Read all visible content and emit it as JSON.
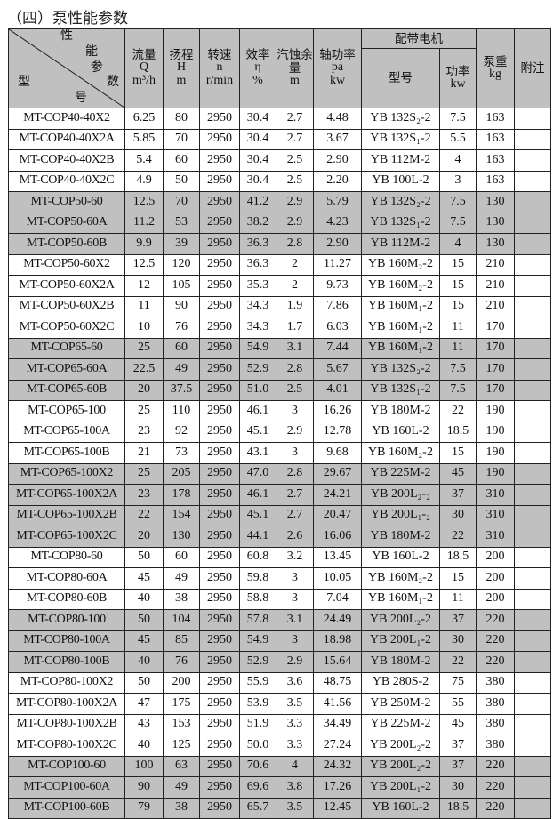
{
  "title": "（四）泵性能参数",
  "header": {
    "diag_top": [
      "性",
      "能",
      "参",
      "数"
    ],
    "diag_bottom": [
      "型",
      "号"
    ],
    "flow": {
      "label": "流量",
      "sym": "Q",
      "unit": "m³/h"
    },
    "head": {
      "label": "扬程",
      "sym": "H",
      "unit": "m"
    },
    "speed": {
      "label": "转速",
      "sym": "n",
      "unit": "r/min"
    },
    "eff": {
      "label": "效率",
      "sym": "η",
      "unit": "%"
    },
    "npsh": {
      "label": "汽蚀余量",
      "unit": "m"
    },
    "shaft": {
      "label": "轴功率",
      "sym": "pa",
      "unit": "kw"
    },
    "motor": {
      "label": "配带电机",
      "model": "型号",
      "power": "功率",
      "power_unit": "kw"
    },
    "weight": {
      "label": "泵重",
      "unit": "kg"
    },
    "note": "附注"
  },
  "shade_color": "#c0c0c0",
  "rows": [
    {
      "model": "MT-COP40-40X2",
      "q": "6.25",
      "h": "80",
      "n": "2950",
      "eff": "30.4",
      "npsh": "2.7",
      "pa": "4.48",
      "motor": "YB 132S₂-2",
      "kw": "7.5",
      "kg": "163",
      "grey": false
    },
    {
      "model": "MT-COP40-40X2A",
      "q": "5.85",
      "h": "70",
      "n": "2950",
      "eff": "30.4",
      "npsh": "2.7",
      "pa": "3.67",
      "motor": "YB 132S₁-2",
      "kw": "5.5",
      "kg": "163",
      "grey": false
    },
    {
      "model": "MT-COP40-40X2B",
      "q": "5.4",
      "h": "60",
      "n": "2950",
      "eff": "30.4",
      "npsh": "2.5",
      "pa": "2.90",
      "motor": "YB 112M-2",
      "kw": "4",
      "kg": "163",
      "grey": false
    },
    {
      "model": "MT-COP40-40X2C",
      "q": "4.9",
      "h": "50",
      "n": "2950",
      "eff": "30.4",
      "npsh": "2.5",
      "pa": "2.20",
      "motor": "YB 100L-2",
      "kw": "3",
      "kg": "163",
      "grey": false
    },
    {
      "model": "MT-COP50-60",
      "q": "12.5",
      "h": "70",
      "n": "2950",
      "eff": "41.2",
      "npsh": "2.9",
      "pa": "5.79",
      "motor": "YB 132S₂-2",
      "kw": "7.5",
      "kg": "130",
      "grey": true
    },
    {
      "model": "MT-COP50-60A",
      "q": "11.2",
      "h": "53",
      "n": "2950",
      "eff": "38.2",
      "npsh": "2.9",
      "pa": "4.23",
      "motor": "YB 132S₁-2",
      "kw": "7.5",
      "kg": "130",
      "grey": true
    },
    {
      "model": "MT-COP50-60B",
      "q": "9.9",
      "h": "39",
      "n": "2950",
      "eff": "36.3",
      "npsh": "2.8",
      "pa": "2.90",
      "motor": "YB 112M-2",
      "kw": "4",
      "kg": "130",
      "grey": true
    },
    {
      "model": "MT-COP50-60X2",
      "q": "12.5",
      "h": "120",
      "n": "2950",
      "eff": "36.3",
      "npsh": "2",
      "pa": "11.27",
      "motor": "YB 160M₂-2",
      "kw": "15",
      "kg": "210",
      "grey": false
    },
    {
      "model": "MT-COP50-60X2A",
      "q": "12",
      "h": "105",
      "n": "2950",
      "eff": "35.3",
      "npsh": "2",
      "pa": "9.73",
      "motor": "YB 160M₂-2",
      "kw": "15",
      "kg": "210",
      "grey": false
    },
    {
      "model": "MT-COP50-60X2B",
      "q": "11",
      "h": "90",
      "n": "2950",
      "eff": "34.3",
      "npsh": "1.9",
      "pa": "7.86",
      "motor": "YB 160M₁-2",
      "kw": "15",
      "kg": "210",
      "grey": false
    },
    {
      "model": "MT-COP50-60X2C",
      "q": "10",
      "h": "76",
      "n": "2950",
      "eff": "34.3",
      "npsh": "1.7",
      "pa": "6.03",
      "motor": "YB 160M₁-2",
      "kw": "11",
      "kg": "170",
      "grey": false
    },
    {
      "model": "MT-COP65-60",
      "q": "25",
      "h": "60",
      "n": "2950",
      "eff": "54.9",
      "npsh": "3.1",
      "pa": "7.44",
      "motor": "YB 160M₁-2",
      "kw": "11",
      "kg": "170",
      "grey": true
    },
    {
      "model": "MT-COP65-60A",
      "q": "22.5",
      "h": "49",
      "n": "2950",
      "eff": "52.9",
      "npsh": "2.8",
      "pa": "5.67",
      "motor": "YB 132S₂-2",
      "kw": "7.5",
      "kg": "170",
      "grey": true
    },
    {
      "model": "MT-COP65-60B",
      "q": "20",
      "h": "37.5",
      "n": "2950",
      "eff": "51.0",
      "npsh": "2.5",
      "pa": "4.01",
      "motor": "YB 132S₁-2",
      "kw": "7.5",
      "kg": "170",
      "grey": true
    },
    {
      "model": "MT-COP65-100",
      "q": "25",
      "h": "110",
      "n": "2950",
      "eff": "46.1",
      "npsh": "3",
      "pa": "16.26",
      "motor": "YB 180M-2",
      "kw": "22",
      "kg": "190",
      "grey": false
    },
    {
      "model": "MT-COP65-100A",
      "q": "23",
      "h": "92",
      "n": "2950",
      "eff": "45.1",
      "npsh": "2.9",
      "pa": "12.78",
      "motor": "YB 160L-2",
      "kw": "18.5",
      "kg": "190",
      "grey": false
    },
    {
      "model": "MT-COP65-100B",
      "q": "21",
      "h": "73",
      "n": "2950",
      "eff": "43.1",
      "npsh": "3",
      "pa": "9.68",
      "motor": "YB 160M₂-2",
      "kw": "15",
      "kg": "190",
      "grey": false
    },
    {
      "model": "MT-COP65-100X2",
      "q": "25",
      "h": "205",
      "n": "2950",
      "eff": "47.0",
      "npsh": "2.8",
      "pa": "29.67",
      "motor": "YB 225M-2",
      "kw": "45",
      "kg": "190",
      "grey": true
    },
    {
      "model": "MT-COP65-100X2A",
      "q": "23",
      "h": "178",
      "n": "2950",
      "eff": "46.1",
      "npsh": "2.7",
      "pa": "24.21",
      "motor": "YB 200L₂-₂",
      "kw": "37",
      "kg": "310",
      "grey": true
    },
    {
      "model": "MT-COP65-100X2B",
      "q": "22",
      "h": "154",
      "n": "2950",
      "eff": "45.1",
      "npsh": "2.7",
      "pa": "20.47",
      "motor": "YB 200L₁-₂",
      "kw": "30",
      "kg": "310",
      "grey": true
    },
    {
      "model": "MT-COP65-100X2C",
      "q": "20",
      "h": "130",
      "n": "2950",
      "eff": "44.1",
      "npsh": "2.6",
      "pa": "16.06",
      "motor": "YB 180M-2",
      "kw": "22",
      "kg": "310",
      "grey": true
    },
    {
      "model": "MT-COP80-60",
      "q": "50",
      "h": "60",
      "n": "2950",
      "eff": "60.8",
      "npsh": "3.2",
      "pa": "13.45",
      "motor": "YB 160L-2",
      "kw": "18.5",
      "kg": "200",
      "grey": false
    },
    {
      "model": "MT-COP80-60A",
      "q": "45",
      "h": "49",
      "n": "2950",
      "eff": "59.8",
      "npsh": "3",
      "pa": "10.05",
      "motor": "YB 160M₂-2",
      "kw": "15",
      "kg": "200",
      "grey": false
    },
    {
      "model": "MT-COP80-60B",
      "q": "40",
      "h": "38",
      "n": "2950",
      "eff": "58.8",
      "npsh": "3",
      "pa": "7.04",
      "motor": "YB 160M₁-2",
      "kw": "11",
      "kg": "200",
      "grey": false
    },
    {
      "model": "MT-COP80-100",
      "q": "50",
      "h": "104",
      "n": "2950",
      "eff": "57.8",
      "npsh": "3.1",
      "pa": "24.49",
      "motor": "YB 200L₂-2",
      "kw": "37",
      "kg": "220",
      "grey": true
    },
    {
      "model": "MT-COP80-100A",
      "q": "45",
      "h": "85",
      "n": "2950",
      "eff": "54.9",
      "npsh": "3",
      "pa": "18.98",
      "motor": "YB 200L₁-2",
      "kw": "30",
      "kg": "220",
      "grey": true
    },
    {
      "model": "MT-COP80-100B",
      "q": "40",
      "h": "76",
      "n": "2950",
      "eff": "52.9",
      "npsh": "2.9",
      "pa": "15.64",
      "motor": "YB 180M-2",
      "kw": "22",
      "kg": "220",
      "grey": true
    },
    {
      "model": "MT-COP80-100X2",
      "q": "50",
      "h": "200",
      "n": "2950",
      "eff": "55.9",
      "npsh": "3.6",
      "pa": "48.75",
      "motor": "YB 280S-2",
      "kw": "75",
      "kg": "380",
      "grey": false
    },
    {
      "model": "MT-COP80-100X2A",
      "q": "47",
      "h": "175",
      "n": "2950",
      "eff": "53.9",
      "npsh": "3.5",
      "pa": "41.56",
      "motor": "YB 250M-2",
      "kw": "55",
      "kg": "380",
      "grey": false
    },
    {
      "model": "MT-COP80-100X2B",
      "q": "43",
      "h": "153",
      "n": "2950",
      "eff": "51.9",
      "npsh": "3.3",
      "pa": "34.49",
      "motor": "YB 225M-2",
      "kw": "45",
      "kg": "380",
      "grey": false
    },
    {
      "model": "MT-COP80-100X2C",
      "q": "40",
      "h": "125",
      "n": "2950",
      "eff": "50.0",
      "npsh": "3.3",
      "pa": "27.24",
      "motor": "YB 200L₂-2",
      "kw": "37",
      "kg": "380",
      "grey": false
    },
    {
      "model": "MT-COP100-60",
      "q": "100",
      "h": "63",
      "n": "2950",
      "eff": "70.6",
      "npsh": "4",
      "pa": "24.32",
      "motor": "YB 200L₂-2",
      "kw": "37",
      "kg": "220",
      "grey": true
    },
    {
      "model": "MT-COP100-60A",
      "q": "90",
      "h": "49",
      "n": "2950",
      "eff": "69.6",
      "npsh": "3.8",
      "pa": "17.26",
      "motor": "YB 200L₁-2",
      "kw": "30",
      "kg": "220",
      "grey": true
    },
    {
      "model": "MT-COP100-60B",
      "q": "79",
      "h": "38",
      "n": "2950",
      "eff": "65.7",
      "npsh": "3.5",
      "pa": "12.45",
      "motor": "YB 160L-2",
      "kw": "18.5",
      "kg": "220",
      "grey": true
    }
  ]
}
